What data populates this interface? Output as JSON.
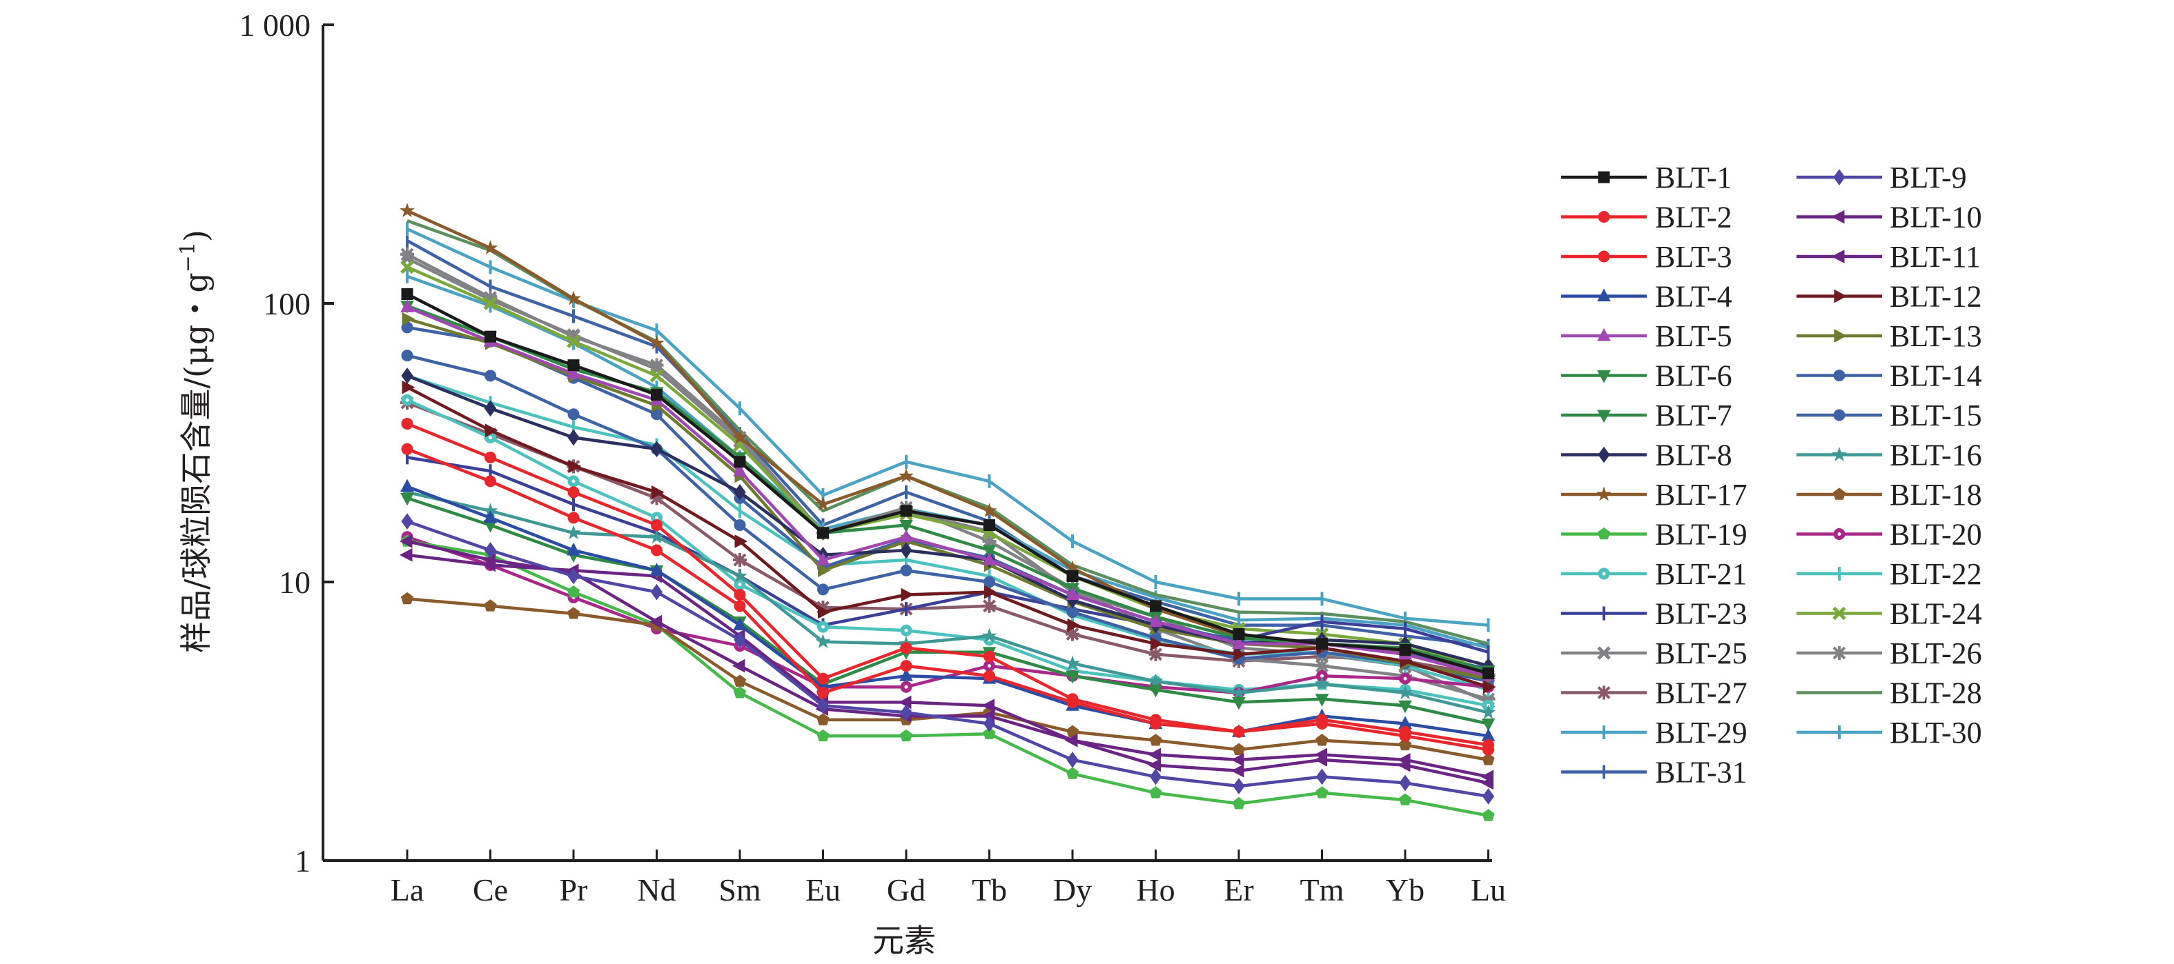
{
  "chart_data": {
    "type": "line",
    "title": "",
    "xlabel": "元素",
    "ylabel": "样品/球粒陨石含量/(μg・g",
    "ylabel_superscript": "−1",
    "ylabel_suffix": ")",
    "yscale": "log",
    "ylim": [
      1,
      1000
    ],
    "yticks": [
      {
        "value": 1,
        "label": "1"
      },
      {
        "value": 10,
        "label": "10"
      },
      {
        "value": 100,
        "label": "100"
      },
      {
        "value": 1000,
        "label": "1 000"
      }
    ],
    "grid": false,
    "legend_position": "right",
    "categories": [
      "La",
      "Ce",
      "Pr",
      "Nd",
      "Sm",
      "Eu",
      "Gd",
      "Tb",
      "Dy",
      "Ho",
      "Er",
      "Tm",
      "Yb",
      "Lu"
    ],
    "series": [
      {
        "name": "BLT-1",
        "color": "#1a1a1a",
        "marker": "square",
        "values": [
          108,
          76,
          60,
          47,
          27,
          15,
          18,
          16,
          10.5,
          8.2,
          6.5,
          6,
          5.7,
          4.7
        ]
      },
      {
        "name": "BLT-2",
        "color": "#e8262b",
        "marker": "circle",
        "values": [
          37,
          28,
          21,
          16,
          9,
          4.5,
          5.8,
          5.4,
          3.8,
          3.2,
          2.9,
          3.2,
          2.9,
          2.6
        ]
      },
      {
        "name": "BLT-3",
        "color": "#e8262b",
        "marker": "circle",
        "values": [
          30,
          23,
          17,
          13,
          8.2,
          4.0,
          5.0,
          4.6,
          3.7,
          3.1,
          2.9,
          3.1,
          2.8,
          2.5
        ]
      },
      {
        "name": "BLT-4",
        "color": "#2b4ca3",
        "marker": "triangle-up",
        "values": [
          22,
          17,
          13,
          11,
          7,
          4.2,
          4.6,
          4.5,
          3.6,
          3.1,
          2.9,
          3.3,
          3.1,
          2.8
        ]
      },
      {
        "name": "BLT-5",
        "color": "#a047b3",
        "marker": "triangle-up",
        "values": [
          97,
          73,
          56,
          45,
          25,
          12,
          14.5,
          12,
          9,
          7.2,
          6,
          6,
          5.5,
          4.6
        ]
      },
      {
        "name": "BLT-6",
        "color": "#2f8a45",
        "marker": "triangle-down",
        "values": [
          98,
          76,
          58,
          48,
          28,
          15,
          16,
          13,
          9.5,
          7.5,
          6.3,
          6,
          5.8,
          4.8
        ]
      },
      {
        "name": "BLT-7",
        "color": "#2f8a45",
        "marker": "triangle-down",
        "values": [
          20,
          16,
          12.5,
          11,
          7.2,
          4.3,
          5.6,
          5.6,
          4.6,
          4.1,
          3.7,
          3.8,
          3.6,
          3.1
        ]
      },
      {
        "name": "BLT-8",
        "color": "#2b2f60",
        "marker": "diamond",
        "values": [
          55,
          42,
          33,
          30,
          21,
          12.5,
          13,
          12,
          8.6,
          7,
          6,
          6.2,
          6,
          5
        ]
      },
      {
        "name": "BLT-9",
        "color": "#4f46a6",
        "marker": "diamond",
        "values": [
          16.5,
          13,
          10.5,
          9.2,
          6.2,
          3.6,
          3.4,
          3.1,
          2.3,
          2.0,
          1.85,
          2.0,
          1.9,
          1.7
        ]
      },
      {
        "name": "BLT-10",
        "color": "#6a2584",
        "marker": "triangle-left",
        "values": [
          12.5,
          11.5,
          11,
          10.5,
          6.4,
          3.7,
          3.7,
          3.6,
          2.7,
          2.4,
          2.3,
          2.4,
          2.3,
          2.0
        ]
      },
      {
        "name": "BLT-11",
        "color": "#6a2584",
        "marker": "triangle-left",
        "values": [
          14,
          12,
          10.8,
          7.2,
          5,
          3.5,
          3.3,
          3.3,
          2.7,
          2.2,
          2.1,
          2.3,
          2.2,
          1.9
        ]
      },
      {
        "name": "BLT-12",
        "color": "#6e1a1e",
        "marker": "triangle-right",
        "values": [
          50,
          35,
          26,
          21,
          14,
          7.8,
          9,
          9.2,
          7,
          6,
          5.5,
          5.8,
          5.2,
          4.2
        ]
      },
      {
        "name": "BLT-13",
        "color": "#6e7a2e",
        "marker": "triangle-right",
        "values": [
          88,
          72,
          55,
          43,
          24,
          11,
          14,
          11.5,
          8.5,
          6.8,
          6,
          5.8,
          5.1,
          4.5
        ]
      },
      {
        "name": "BLT-14",
        "color": "#3d62a6",
        "marker": "circle",
        "values": [
          82,
          73,
          54,
          40,
          20,
          11.3,
          14.2,
          12.2,
          9,
          7.2,
          6.1,
          6,
          5.5,
          4.9
        ]
      },
      {
        "name": "BLT-15",
        "color": "#3d62a6",
        "marker": "circle",
        "values": [
          65,
          55,
          40,
          30,
          16,
          9.4,
          11,
          10,
          7.8,
          6.3,
          5.3,
          5.6,
          5.1,
          4.4
        ]
      },
      {
        "name": "BLT-16",
        "color": "#3e9896",
        "marker": "star",
        "values": [
          21,
          18,
          15,
          14.5,
          10.5,
          6.1,
          6,
          6.4,
          5.1,
          4.4,
          4.0,
          4.3,
          4.0,
          3.4
        ]
      },
      {
        "name": "BLT-17",
        "color": "#8a5a2b",
        "marker": "star",
        "values": [
          215,
          158,
          104,
          72,
          33,
          19,
          24,
          18,
          11.2,
          8,
          6.4,
          6,
          5.6,
          4.6
        ]
      },
      {
        "name": "BLT-18",
        "color": "#8a5a2b",
        "marker": "pentagon",
        "values": [
          8.7,
          8.2,
          7.7,
          7,
          4.4,
          3.2,
          3.2,
          3.4,
          2.9,
          2.7,
          2.5,
          2.7,
          2.6,
          2.3
        ]
      },
      {
        "name": "BLT-19",
        "color": "#46b94a",
        "marker": "pentagon",
        "values": [
          14,
          12.5,
          9.2,
          7,
          4,
          2.8,
          2.8,
          2.85,
          2.05,
          1.75,
          1.6,
          1.75,
          1.65,
          1.45
        ]
      },
      {
        "name": "BLT-20",
        "color": "#a82789",
        "marker": "circle-dot",
        "values": [
          14.5,
          11.5,
          8.8,
          6.8,
          5.9,
          4.2,
          4.2,
          5.0,
          4.6,
          4.2,
          4.0,
          4.6,
          4.5,
          4.2
        ]
      },
      {
        "name": "BLT-21",
        "color": "#4cc2bf",
        "marker": "circle-dot",
        "values": [
          45,
          33,
          23,
          17,
          9.8,
          6.9,
          6.7,
          6.2,
          4.8,
          4.4,
          4.1,
          4.3,
          4.1,
          3.6
        ]
      },
      {
        "name": "BLT-22",
        "color": "#4cc2bf",
        "marker": "plus",
        "values": [
          55,
          44,
          36,
          31,
          18,
          11.5,
          12,
          10.5,
          7.6,
          6.2,
          5.5,
          5.6,
          5,
          4.1
        ]
      },
      {
        "name": "BLT-23",
        "color": "#3a3f98",
        "marker": "plus",
        "values": [
          28,
          25,
          19,
          15,
          10.5,
          7,
          8,
          9.2,
          8,
          7,
          6.2,
          7.2,
          6.8,
          5.6
        ]
      },
      {
        "name": "BLT-24",
        "color": "#7aa83a",
        "marker": "x",
        "values": [
          135,
          100,
          73,
          55,
          31,
          15,
          17.5,
          15,
          10.5,
          8,
          6.8,
          6.5,
          6,
          4.8
        ]
      },
      {
        "name": "BLT-25",
        "color": "#808285",
        "marker": "x",
        "values": [
          145,
          103,
          77,
          58,
          32,
          15,
          18,
          15.2,
          9.2,
          7.5,
          5.8,
          5.5,
          5,
          3.7
        ]
      },
      {
        "name": "BLT-26",
        "color": "#808285",
        "marker": "asterisk",
        "values": [
          150,
          105,
          76,
          60,
          33,
          15,
          18.5,
          14,
          9.5,
          6.8,
          5.3,
          5,
          4.6,
          3.8
        ]
      },
      {
        "name": "BLT-27",
        "color": "#8a5a68",
        "marker": "asterisk",
        "values": [
          44,
          34,
          26,
          20,
          12,
          8.1,
          8,
          8.2,
          6.5,
          5.5,
          5.2,
          5.4,
          5.2,
          4.6
        ]
      },
      {
        "name": "BLT-28",
        "color": "#5b8f5e",
        "marker": "none",
        "values": [
          198,
          155,
          103,
          73,
          35,
          18,
          24,
          18.5,
          11.5,
          9,
          7.8,
          7.7,
          7.2,
          6
        ]
      },
      {
        "name": "BLT-29",
        "color": "#4aa3c2",
        "marker": "plus",
        "values": [
          125,
          98,
          72,
          50,
          28,
          15.5,
          18.3,
          16,
          11,
          8.8,
          7.3,
          7.4,
          7,
          5.8
        ]
      },
      {
        "name": "BLT-30",
        "color": "#4aa3c2",
        "marker": "plus",
        "values": [
          185,
          135,
          102,
          80,
          42,
          20.5,
          27,
          23,
          14,
          10,
          8.7,
          8.7,
          7.4,
          7
        ]
      },
      {
        "name": "BLT-31",
        "color": "#3d62a6",
        "marker": "plus",
        "values": [
          168,
          115,
          90,
          70,
          34,
          16,
          21,
          16.5,
          10.5,
          8.5,
          7,
          7,
          6.4,
          5.9
        ]
      }
    ]
  }
}
